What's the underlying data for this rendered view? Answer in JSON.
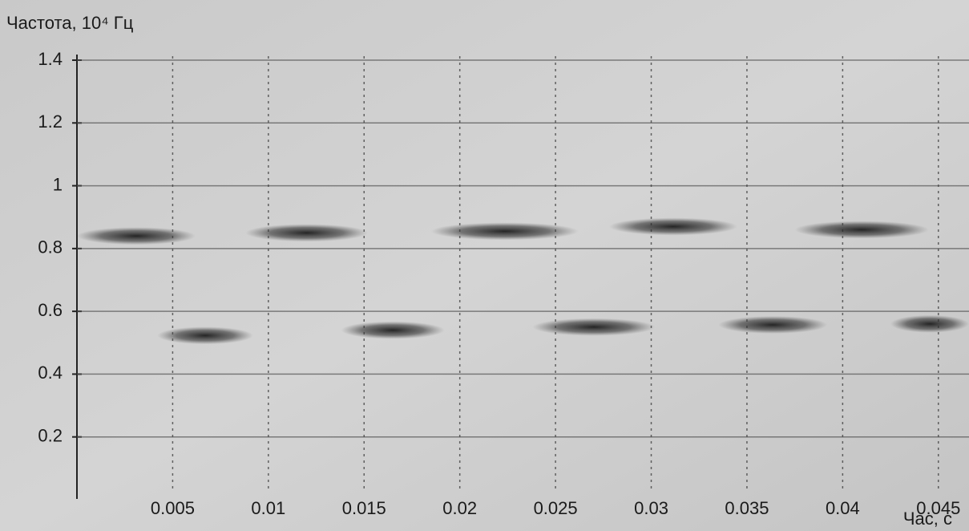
{
  "chart_data": {
    "type": "spectrogram",
    "y_label": "Частота, 10⁴ Гц",
    "x_label": "Час, с",
    "xlim": [
      0,
      0.0466
    ],
    "ylim": [
      0,
      1.4
    ],
    "xticks": [
      0.005,
      0.01,
      0.015,
      0.02,
      0.025,
      0.03,
      0.035,
      0.04,
      0.045
    ],
    "yticks": [
      0.2,
      0.4,
      0.6,
      0.8,
      1,
      1.2,
      1.4
    ],
    "grid": true,
    "color": "#2a2a2a",
    "segments": [
      {
        "x": [
          0.0,
          0.0062
        ],
        "value": 0.84
      },
      {
        "x": [
          0.0088,
          0.0152
        ],
        "value": 0.85
      },
      {
        "x": [
          0.0185,
          0.0262
        ],
        "value": 0.855
      },
      {
        "x": [
          0.0278,
          0.0345
        ],
        "value": 0.87
      },
      {
        "x": [
          0.0375,
          0.0445
        ],
        "value": 0.86
      },
      {
        "x": [
          0.0042,
          0.0092
        ],
        "value": 0.523
      },
      {
        "x": [
          0.0138,
          0.0192
        ],
        "value": 0.54
      },
      {
        "x": [
          0.0238,
          0.0302
        ],
        "value": 0.55
      },
      {
        "x": [
          0.0335,
          0.0392
        ],
        "value": 0.557
      },
      {
        "x": [
          0.0425,
          0.0466
        ],
        "value": 0.56
      }
    ]
  }
}
